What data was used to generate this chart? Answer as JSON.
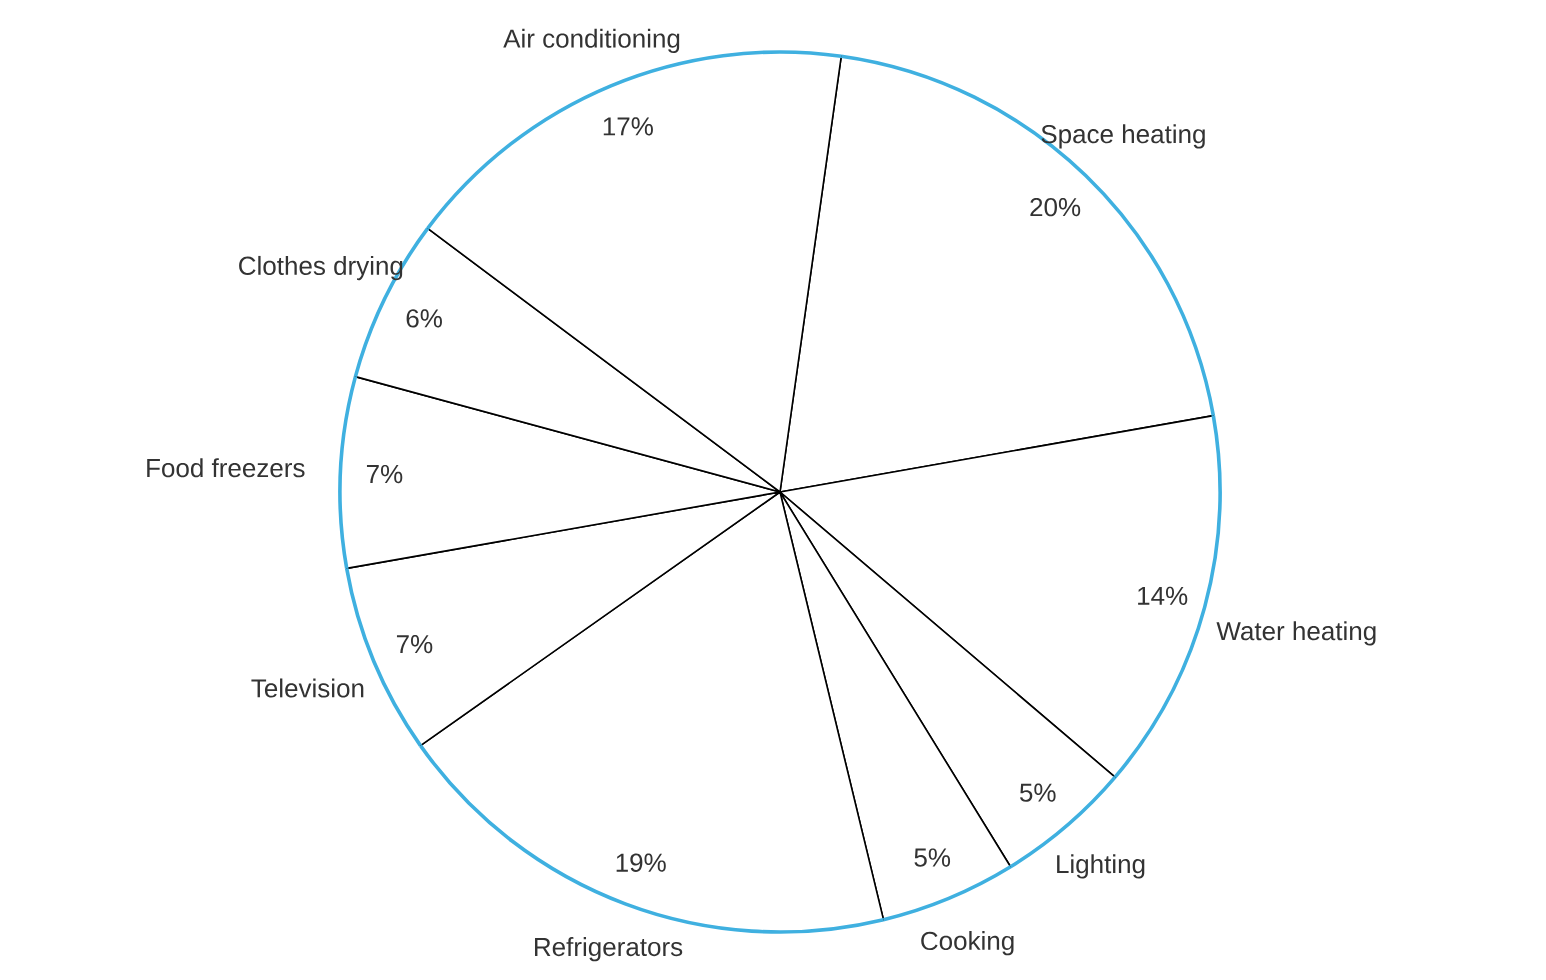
{
  "chart_data": {
    "type": "pie",
    "categories": [
      "Space heating",
      "Water heating",
      "Lighting",
      "Cooking",
      "Refrigerators",
      "Television",
      "Food freezers",
      "Clothes drying",
      "Air conditioning"
    ],
    "values": [
      20,
      14,
      5,
      5,
      19,
      7,
      7,
      6,
      17
    ],
    "value_labels": [
      "20%",
      "14%",
      "5%",
      "5%",
      "19%",
      "7%",
      "7%",
      "6%",
      "17%"
    ],
    "colors": [
      "#ffffff",
      "#ffffff",
      "#ffffff",
      "#ffffff",
      "#ffffff",
      "#ffffff",
      "#ffffff",
      "#ffffff",
      "#ffffff"
    ]
  }
}
